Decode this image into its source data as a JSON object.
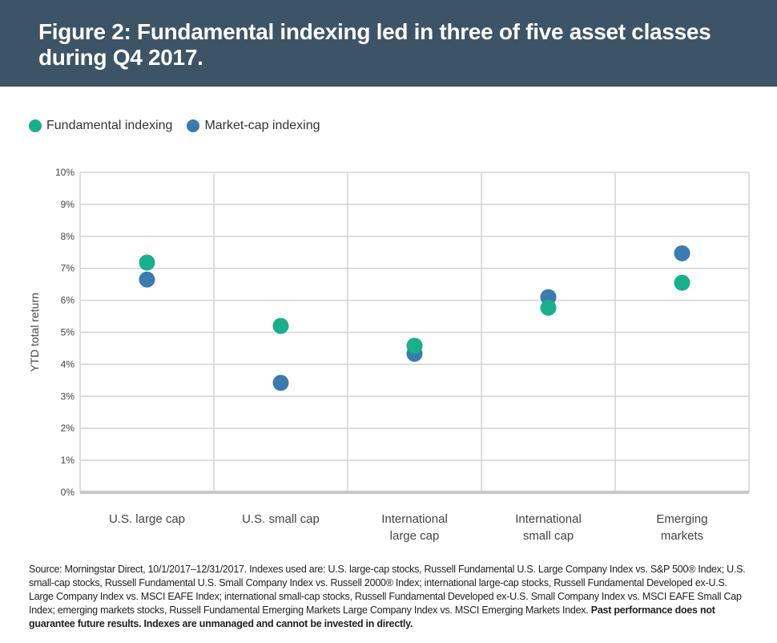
{
  "header": {
    "title": "Figure 2: Fundamental indexing led in three of five asset classes during Q4 2017."
  },
  "colors": {
    "header_bg": "#3d5466",
    "fundamental": "#17b08a",
    "market_cap": "#3a7bb0",
    "grid": "#d4d4d4",
    "baseline": "#c8c8c8"
  },
  "chart_data": {
    "type": "scatter",
    "title": "",
    "xlabel": "",
    "ylabel": "YTD total return",
    "ylim": [
      0,
      10
    ],
    "yticks": [
      "0%",
      "1%",
      "2%",
      "3%",
      "4%",
      "5%",
      "6%",
      "7%",
      "8%",
      "9%",
      "10%"
    ],
    "categories": [
      [
        "U.S. large cap"
      ],
      [
        "U.S. small cap"
      ],
      [
        "International",
        "large cap"
      ],
      [
        "International",
        "small cap"
      ],
      [
        "Emerging",
        "markets"
      ]
    ],
    "series": [
      {
        "name": "Fundamental indexing",
        "color": "#17b08a",
        "values": [
          7.18,
          5.2,
          4.58,
          5.77,
          6.55
        ]
      },
      {
        "name": "Market-cap indexing",
        "color": "#3a7bb0",
        "values": [
          6.65,
          3.42,
          4.33,
          6.1,
          7.47
        ]
      }
    ],
    "grid": true,
    "legend_position": "top-left"
  },
  "source": {
    "text": "Source: Morningstar Direct, 10/1/2017–12/31/2017. Indexes used are: U.S. large-cap stocks, Russell Fundamental U.S. Large Company Index vs. S&P 500® Index; U.S. small-cap stocks, Russell Fundamental U.S. Small Company Index vs. Russell 2000® Index; international large-cap stocks, Russell Fundamental Developed ex-U.S. Large Company Index vs. MSCI EAFE Index; international small-cap stocks, Russell Fundamental Developed ex-U.S. Small Company Index vs. MSCI EAFE Small Cap Index; emerging markets stocks, Russell Fundamental Emerging Markets Large Company Index vs. MSCI Emerging Markets Index.",
    "bold_text": "Past performance does not guarantee future results. Indexes are unmanaged and cannot be invested in directly."
  }
}
